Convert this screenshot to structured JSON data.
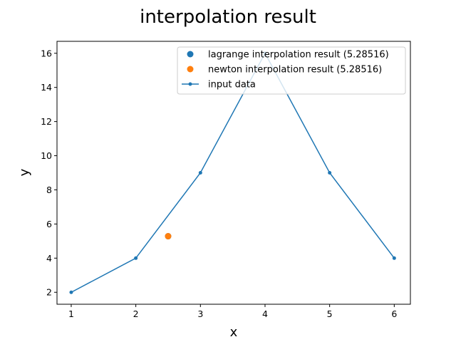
{
  "chart_data": {
    "type": "line",
    "title": "interpolation result",
    "xlabel": "x",
    "ylabel": "y",
    "xlim": [
      0.78,
      6.25
    ],
    "ylim": [
      1.3,
      16.7
    ],
    "xticks": [
      1,
      2,
      3,
      4,
      5,
      6
    ],
    "yticks": [
      2,
      4,
      6,
      8,
      10,
      12,
      14,
      16
    ],
    "grid": false,
    "legend_position": "top-right",
    "series": [
      {
        "name": "lagrange interpolation result (5.28516)",
        "kind": "scatter",
        "color": "#1f77b4",
        "x": [
          2.5
        ],
        "y": [
          5.28516
        ]
      },
      {
        "name": "newton interpolation result (5.28516)",
        "kind": "scatter",
        "color": "#ff7f0e",
        "x": [
          2.5
        ],
        "y": [
          5.28516
        ]
      },
      {
        "name": "input data",
        "kind": "line",
        "color": "#1f77b4",
        "x": [
          1,
          2,
          3,
          4,
          5,
          6
        ],
        "y": [
          2,
          4,
          9,
          16,
          9,
          4
        ]
      }
    ]
  }
}
